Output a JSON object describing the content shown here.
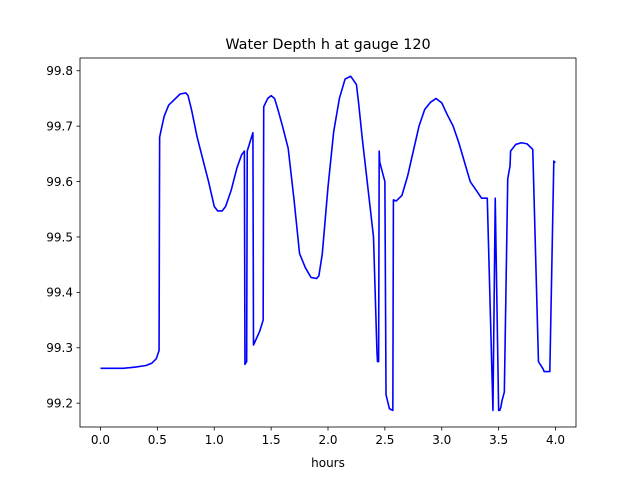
{
  "chart_data": {
    "type": "line",
    "title": "Water Depth h at gauge 120",
    "xlabel": "hours",
    "ylabel": "",
    "xlim": [
      -0.18,
      4.18
    ],
    "ylim": [
      99.157,
      99.823
    ],
    "grid": false,
    "x_ticks": [
      0.0,
      0.5,
      1.0,
      1.5,
      2.0,
      2.5,
      3.0,
      3.5,
      4.0
    ],
    "x_tick_labels": [
      "0.0",
      "0.5",
      "1.0",
      "1.5",
      "2.0",
      "2.5",
      "3.0",
      "3.5",
      "4.0"
    ],
    "y_ticks": [
      99.2,
      99.3,
      99.4,
      99.5,
      99.6,
      99.7,
      99.8
    ],
    "y_tick_labels": [
      "99.2",
      "99.3",
      "99.4",
      "99.5",
      "99.6",
      "99.7",
      "99.8"
    ],
    "series": [
      {
        "name": "",
        "color": "#0000ff",
        "x": [
          0.0,
          0.1,
          0.2,
          0.3,
          0.4,
          0.45,
          0.49,
          0.515,
          0.52,
          0.53,
          0.56,
          0.6,
          0.65,
          0.7,
          0.75,
          0.77,
          0.8,
          0.85,
          0.9,
          0.95,
          1.0,
          1.03,
          1.07,
          1.1,
          1.15,
          1.2,
          1.24,
          1.265,
          1.27,
          1.285,
          1.29,
          1.32,
          1.34,
          1.345,
          1.4,
          1.43,
          1.435,
          1.47,
          1.5,
          1.53,
          1.56,
          1.6,
          1.65,
          1.7,
          1.75,
          1.8,
          1.85,
          1.9,
          1.92,
          1.95,
          2.0,
          2.05,
          2.1,
          2.15,
          2.2,
          2.25,
          2.27,
          2.3,
          2.35,
          2.4,
          2.43,
          2.435,
          2.445,
          2.45,
          2.455,
          2.5,
          2.51,
          2.54,
          2.57,
          2.575,
          2.6,
          2.65,
          2.7,
          2.75,
          2.8,
          2.85,
          2.9,
          2.95,
          3.0,
          3.05,
          3.1,
          3.15,
          3.2,
          3.25,
          3.3,
          3.35,
          3.4,
          3.45,
          3.47,
          3.5,
          3.51,
          3.52,
          3.53,
          3.55,
          3.58,
          3.6,
          3.605,
          3.65,
          3.7,
          3.75,
          3.8,
          3.85,
          3.89,
          3.9,
          3.95,
          3.985,
          3.99,
          4.0
        ],
        "y": [
          99.263,
          99.263,
          99.263,
          99.265,
          99.268,
          99.272,
          99.28,
          99.295,
          99.68,
          99.69,
          99.718,
          99.738,
          99.748,
          99.758,
          99.76,
          99.755,
          99.73,
          99.68,
          99.64,
          99.6,
          99.555,
          99.547,
          99.547,
          99.555,
          99.585,
          99.625,
          99.648,
          99.655,
          99.27,
          99.275,
          99.655,
          99.675,
          99.688,
          99.305,
          99.33,
          99.35,
          99.735,
          99.75,
          99.755,
          99.75,
          99.73,
          99.7,
          99.66,
          99.57,
          99.47,
          99.445,
          99.427,
          99.425,
          99.43,
          99.47,
          99.59,
          99.69,
          99.75,
          99.785,
          99.79,
          99.775,
          99.74,
          99.68,
          99.59,
          99.5,
          99.295,
          99.275,
          99.275,
          99.655,
          99.635,
          99.6,
          99.215,
          99.19,
          99.187,
          99.567,
          99.565,
          99.575,
          99.61,
          99.655,
          99.7,
          99.73,
          99.743,
          99.75,
          99.742,
          99.72,
          99.7,
          99.67,
          99.635,
          99.6,
          99.585,
          99.57,
          99.57,
          99.187,
          99.57,
          99.187,
          99.187,
          99.193,
          99.205,
          99.22,
          99.605,
          99.628,
          99.655,
          99.667,
          99.67,
          99.668,
          99.658,
          99.275,
          99.262,
          99.257,
          99.257,
          99.637,
          99.635,
          99.635
        ]
      }
    ]
  }
}
